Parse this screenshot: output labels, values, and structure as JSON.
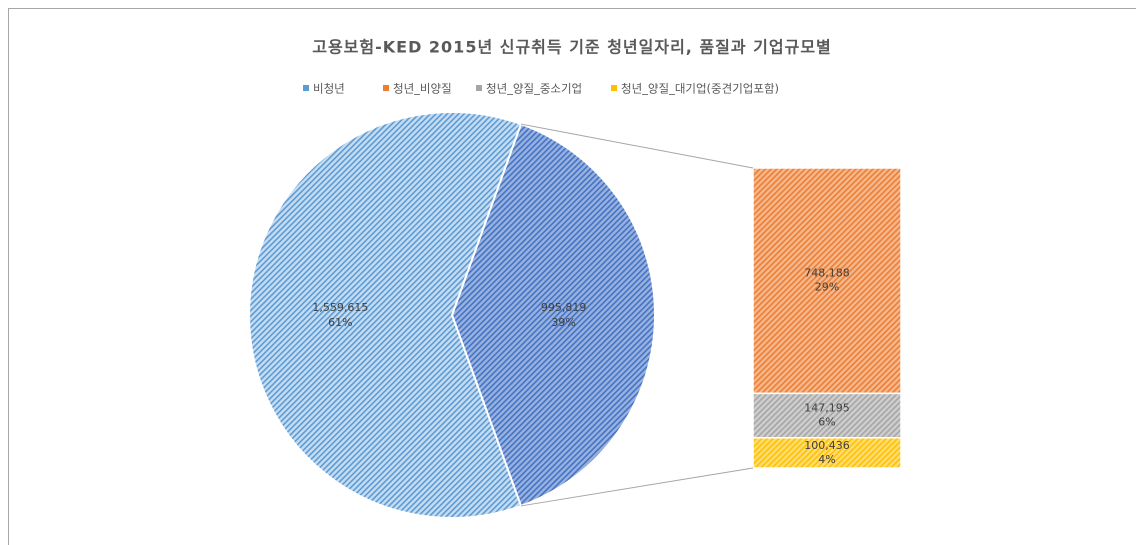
{
  "chart_data": {
    "type": "bar-of-pie",
    "title": "고용보험-KED 2015년 신규취득 기준 청년일자리, 품질과 기업규모별",
    "categories": [
      "비청년",
      "청년_비양질",
      "청년_양질_중소기업",
      "청년_양질_대기업(중견기업포함)"
    ],
    "colors": [
      "#5b9bd5",
      "#ed7d31",
      "#a5a5a5",
      "#ffc000"
    ],
    "values": [
      1559615,
      748188,
      147195,
      100436
    ],
    "value_labels": [
      "1,559,615",
      "748,188",
      "147,195",
      "100,436"
    ],
    "percents": [
      61,
      29,
      6,
      4
    ],
    "percent_labels": [
      "61%",
      "29%",
      "6%",
      "4%"
    ],
    "second_plot_count": 3,
    "other": {
      "value": 995819,
      "value_label": "995,819",
      "percent": 39,
      "percent_label": "39%",
      "color": "#4472c4"
    },
    "legend": "top"
  }
}
